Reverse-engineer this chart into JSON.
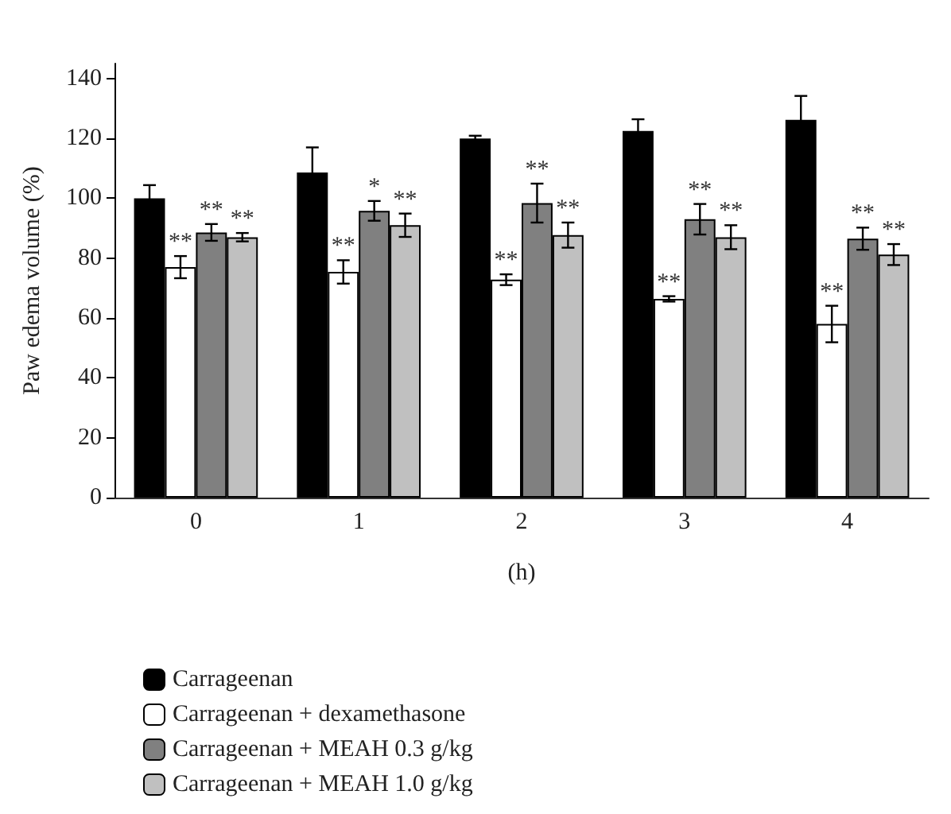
{
  "chart_data": {
    "type": "bar",
    "xlabel": "(h)",
    "ylabel": "Paw edema volume (%)",
    "categories": [
      "0",
      "1",
      "2",
      "3",
      "4"
    ],
    "ylim": [
      0,
      145
    ],
    "yticks": [
      0,
      20,
      40,
      60,
      80,
      100,
      120,
      140
    ],
    "grid": false,
    "legend": "bottom",
    "series": [
      {
        "name": "Carrageenan",
        "color": "#000000",
        "values": [
          100,
          108.6,
          120,
          122.5,
          126.2
        ],
        "errors": [
          4.4,
          8.4,
          0.9,
          3.9,
          8
        ]
      },
      {
        "name": "Carrageenan + dexamethasone",
        "color": "#ffffff",
        "values": [
          77,
          75.4,
          72.8,
          66.4,
          58
        ],
        "errors": [
          3.7,
          3.9,
          1.8,
          0.9,
          6.1
        ],
        "value_labels": [
          "**",
          "**",
          "**",
          "**",
          "**"
        ]
      },
      {
        "name": "Carrageenan + MEAH 0.3 g/kg",
        "color": "#808080",
        "values": [
          88.6,
          95.8,
          98.4,
          93,
          86.5
        ],
        "errors": [
          2.8,
          3.3,
          6.5,
          5.1,
          3.7
        ],
        "value_labels": [
          "**",
          "*",
          "**",
          "**",
          "**"
        ]
      },
      {
        "name": "Carrageenan + MEAH 1.0 g/kg",
        "color": "#c0c0c0",
        "values": [
          87,
          91,
          87.7,
          87,
          81.2
        ],
        "errors": [
          1.4,
          3.9,
          4.2,
          4,
          3.5
        ],
        "value_labels": [
          "**",
          "**",
          "**",
          "**",
          "**"
        ]
      }
    ]
  }
}
